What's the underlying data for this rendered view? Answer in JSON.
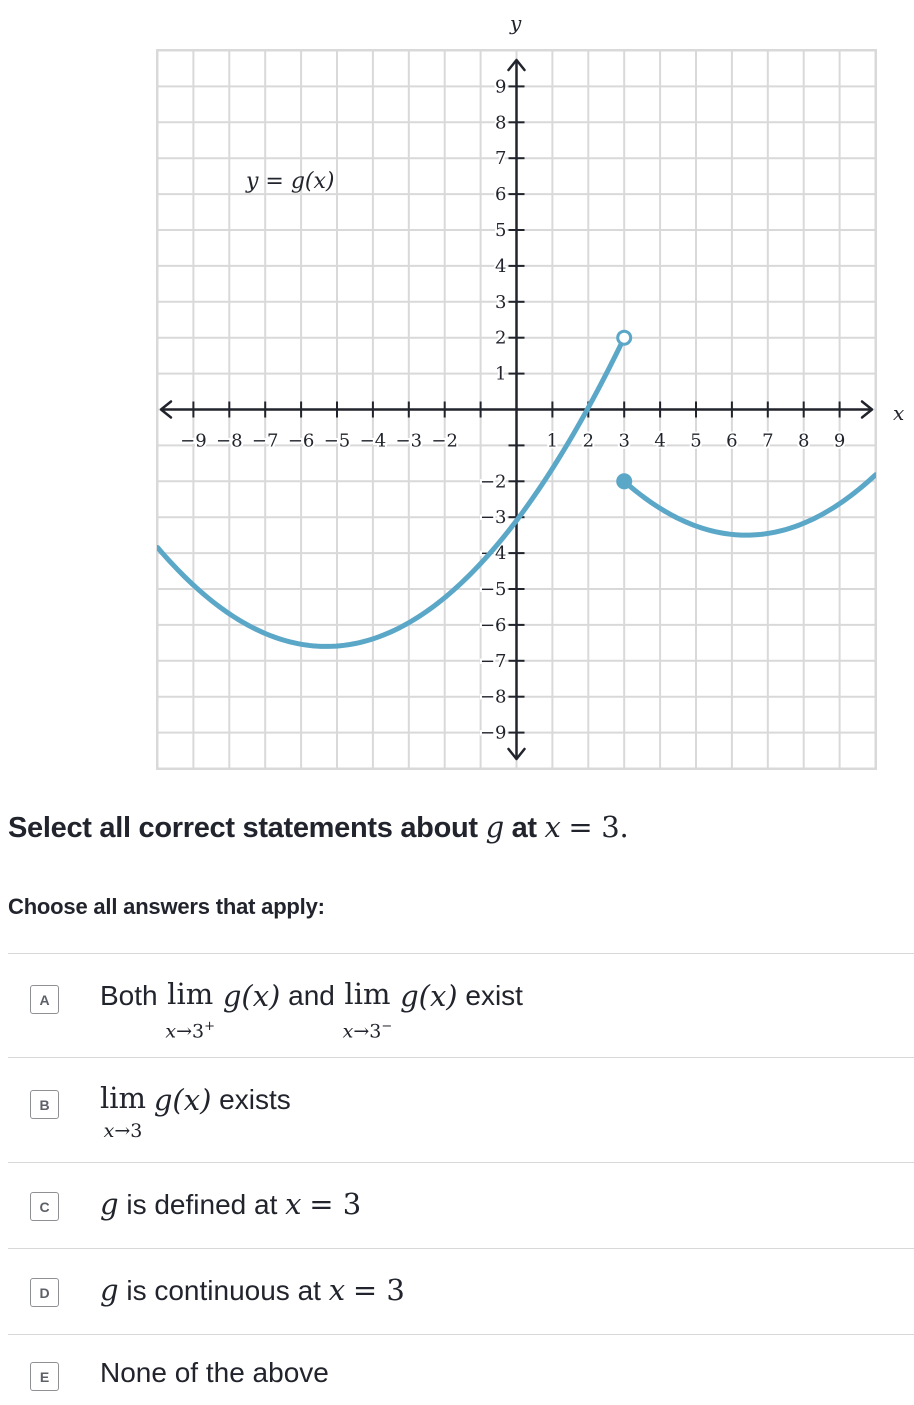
{
  "graph": {
    "x_axis_label": "x",
    "y_axis_label": "y",
    "function_label": "y = g(x)",
    "x_tick_labels": [
      "−9",
      "−8",
      "−7",
      "−6",
      "−5",
      "−4",
      "−3",
      "−2",
      "1",
      "2",
      "3",
      "4",
      "5",
      "6",
      "7",
      "8",
      "9"
    ],
    "y_tick_labels": [
      "9",
      "8",
      "7",
      "6",
      "5",
      "4",
      "3",
      "2",
      "1",
      "−2",
      "−3",
      "−4",
      "−5",
      "−6",
      "−7",
      "−8",
      "−9"
    ],
    "curve_color": "#5ba7c8",
    "grid_color": "#d9d9d9",
    "curve_segments": [
      {
        "domain": [
          -10,
          3
        ],
        "vertex": [
          -5.3,
          -6.6
        ],
        "end_point": [
          3,
          2
        ],
        "end_point_style": "open"
      },
      {
        "domain": [
          3,
          10
        ],
        "vertex": [
          6.4,
          -3.5
        ],
        "start_point": [
          3,
          -2
        ],
        "start_point_style": "closed"
      }
    ]
  },
  "question": {
    "text_before": "Select all correct statements about",
    "func_var": "g",
    "text_mid": "at",
    "x_var": "x",
    "equals": "= 3."
  },
  "instruction": "Choose all answers that apply:",
  "choices": [
    {
      "letter": "A",
      "lead": "Both",
      "lim1_sub_var": "x",
      "lim1_sub": "→3",
      "lim1_sup": "+",
      "connector": "and",
      "lim2_sub_var": "x",
      "lim2_sub": "→3",
      "lim2_sup": "−",
      "expr": "g(x)",
      "tail": "exist"
    },
    {
      "letter": "B",
      "lim_sub_var": "x",
      "lim_sub": "→3",
      "expr": "g(x)",
      "tail": "exists"
    },
    {
      "letter": "C",
      "func_var": "g",
      "text": "is defined at",
      "x_var": "x",
      "equals": "= 3"
    },
    {
      "letter": "D",
      "func_var": "g",
      "text": "is continuous at",
      "x_var": "x",
      "equals": "= 3"
    },
    {
      "letter": "E",
      "text": "None of the above"
    }
  ]
}
